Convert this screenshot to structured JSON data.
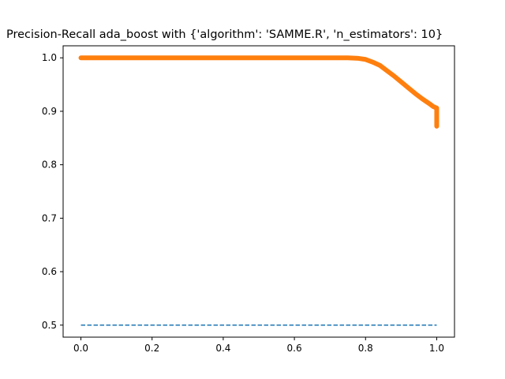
{
  "chart_data": {
    "type": "line",
    "title": "Precision-Recall ada_boost with {'algorithm': 'SAMME.R', 'n_estimators': 10}",
    "xlabel": "",
    "ylabel": "",
    "xlim": [
      -0.05,
      1.05
    ],
    "ylim": [
      0.4775,
      1.0225
    ],
    "xticks": [
      0.0,
      0.2,
      0.4,
      0.6,
      0.8,
      1.0
    ],
    "xtick_labels": [
      "0.0",
      "0.2",
      "0.4",
      "0.6",
      "0.8",
      "1.0"
    ],
    "yticks": [
      0.5,
      0.6,
      0.7,
      0.8,
      0.9,
      1.0
    ],
    "ytick_labels": [
      "0.5",
      "0.6",
      "0.7",
      "0.8",
      "0.9",
      "1.0"
    ],
    "grid": false,
    "series": [
      {
        "style": "dashed",
        "color": "#1f77b4",
        "x": [
          0.0,
          1.0
        ],
        "y": [
          0.5,
          0.5
        ]
      },
      {
        "style": "solid",
        "color": "#ff7f0e",
        "x": [
          0.0,
          0.1,
          0.2,
          0.3,
          0.4,
          0.5,
          0.6,
          0.7,
          0.75,
          0.78,
          0.8,
          0.82,
          0.84,
          0.86,
          0.88,
          0.9,
          0.92,
          0.94,
          0.96,
          0.98,
          0.99,
          1.0,
          1.0,
          1.0
        ],
        "y": [
          1.0,
          1.0,
          1.0,
          1.0,
          1.0,
          1.0,
          1.0,
          1.0,
          1.0,
          0.999,
          0.997,
          0.992,
          0.986,
          0.976,
          0.966,
          0.955,
          0.944,
          0.933,
          0.923,
          0.914,
          0.909,
          0.906,
          0.89,
          0.872
        ]
      }
    ]
  }
}
